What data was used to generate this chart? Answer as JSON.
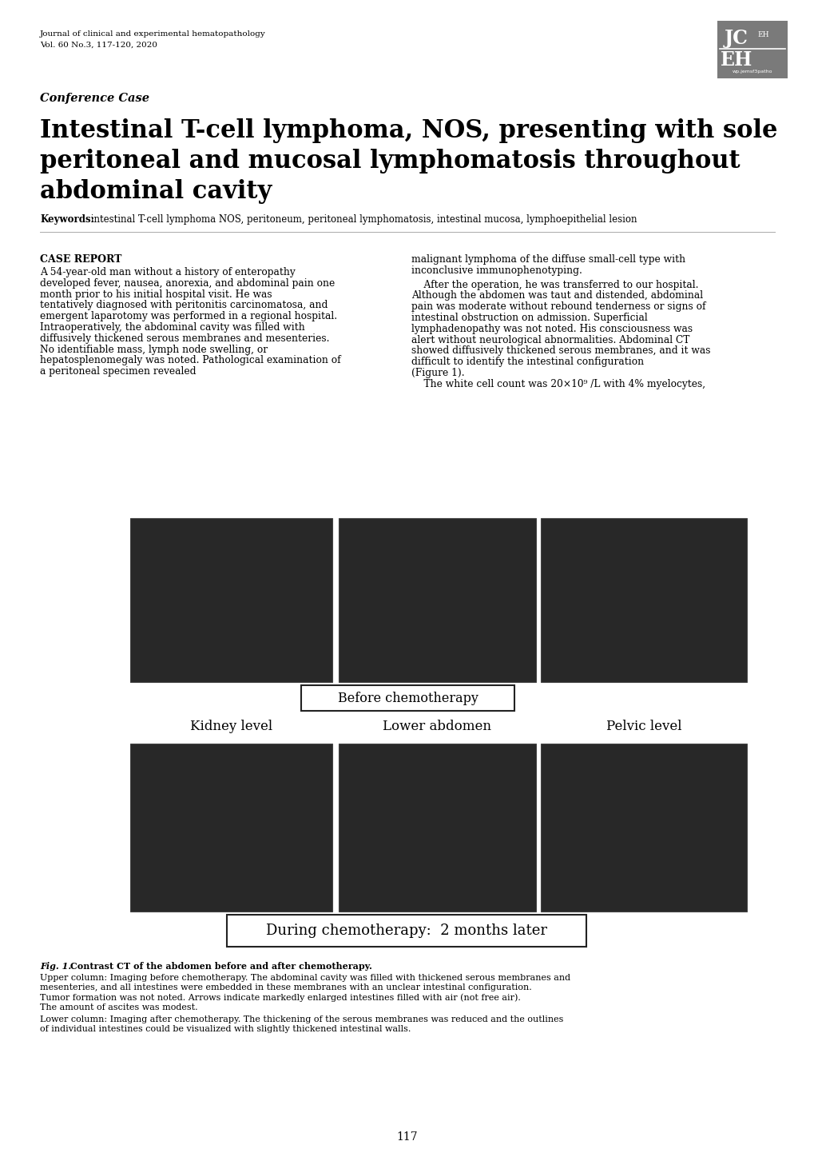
{
  "journal_line1": "Journal of clinical and experimental hematopathology",
  "journal_line2": "Vol. 60 No.3, 117-120, 2020",
  "section_label": "Conference Case",
  "title_line1": "Intestinal T-cell lymphoma, NOS, presenting with sole",
  "title_line2": "peritoneal and mucosal lymphomatosis throughout",
  "title_line3": "abdominal cavity",
  "keywords_bold": "Keywords:",
  "keywords_text": " intestinal T-cell lymphoma NOS, peritoneum, peritoneal lymphomatosis, intestinal mucosa, lymphoepithelial lesion",
  "case_report_header": "CASE REPORT",
  "left_col_para": "    A 54-year-old man without a history of enteropathy developed fever, nausea, anorexia, and abdominal pain one month prior to his initial hospital visit.  He was tentatively diagnosed with peritonitis carcinomatosa, and emergent laparotomy was performed in a regional hospital.  Intraoperatively, the abdominal cavity was filled with diffusively thickened serous membranes and mesenteries.  No identifiable mass, lymph node swelling, or hepatosplenomegaly was noted. Pathological examination of a peritoneal specimen revealed",
  "right_col_top": "malignant lymphoma of the diffuse small-cell type with inconclusive immunophenotyping.",
  "right_col_para": "    After the operation, he was transferred to our hospital. Although the abdomen was taut and distended, abdominal pain was moderate without rebound tenderness or signs of intestinal obstruction on admission.  Superficial lymphadenopathy was not noted.  His consciousness was alert without neurological abnormalities.  Abdominal CT showed diffusively thickened serous membranes, and it was difficult to identify the intestinal configuration (Figure 1).\n    The white cell count was 20×10⁹ /L with 4% myelocytes,",
  "label_before": "Before chemotherapy",
  "label_during": "During chemotherapy:  2 months later",
  "label_kidney": "Kidney level",
  "label_lower": "Lower abdomen",
  "label_pelvic": "Pelvic level",
  "fig_caption_bold": "Fig. 1.",
  "fig_caption_line1": " Contrast CT of the abdomen before and after chemotherapy.",
  "fig_caption_upper": "Upper column: Imaging before chemotherapy. The abdominal cavity was filled with thickened serous membranes and mesenteries, and all intestines were embedded in these membranes with an unclear intestinal configuration. Tumor formation was not noted. Arrows indicate markedly enlarged intestines filled with air (not free air). The amount of ascites was modest.",
  "fig_caption_lower": "Lower column: Imaging after chemotherapy. The thickening of the serous membranes was reduced and the outlines of individual intestines could be visualized with slightly thickened intestinal walls.",
  "page_number": "117",
  "bg_color": "#ffffff",
  "text_color": "#000000"
}
